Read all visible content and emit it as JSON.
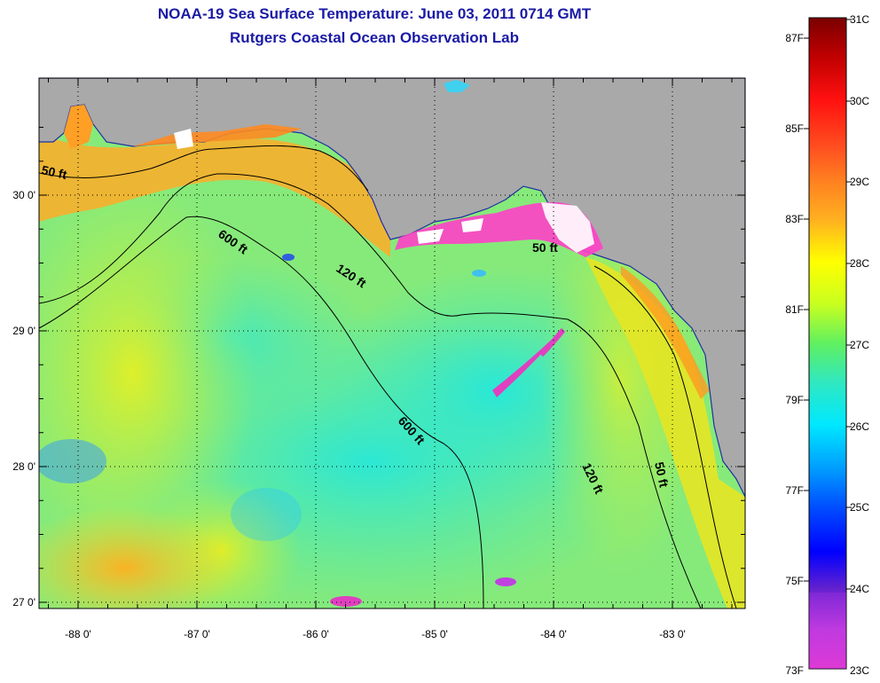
{
  "title": "NOAA-19 Sea Surface Temperature:  June 03, 2011 0714 GMT",
  "subtitle": "Rutgers Coastal Ocean Observation Lab",
  "map": {
    "lon_labels": [
      "-88 0'",
      "-87 0'",
      "-86 0'",
      "-85 0'",
      "-84 0'",
      "-83 0'"
    ],
    "lat_labels": [
      "30 0'",
      "29 0'",
      "28 0'",
      "27 0'"
    ],
    "contours": [
      "50 ft",
      "600 ft",
      "120 ft",
      "50 ft",
      "600 ft",
      "120 ft",
      "50 ft"
    ],
    "colors": {
      "land": "#a9a9a9",
      "nodata": "#ffffff",
      "cold_patch": "#e040c0"
    }
  },
  "colorbar": {
    "celsius": [
      "31C",
      "30C",
      "29C",
      "28C",
      "27C",
      "26C",
      "25C",
      "24C",
      "23C"
    ],
    "fahrenheit": [
      "87F",
      "85F",
      "83F",
      "81F",
      "79F",
      "77F",
      "75F",
      "73F"
    ],
    "celsius_range": [
      23,
      31
    ]
  }
}
